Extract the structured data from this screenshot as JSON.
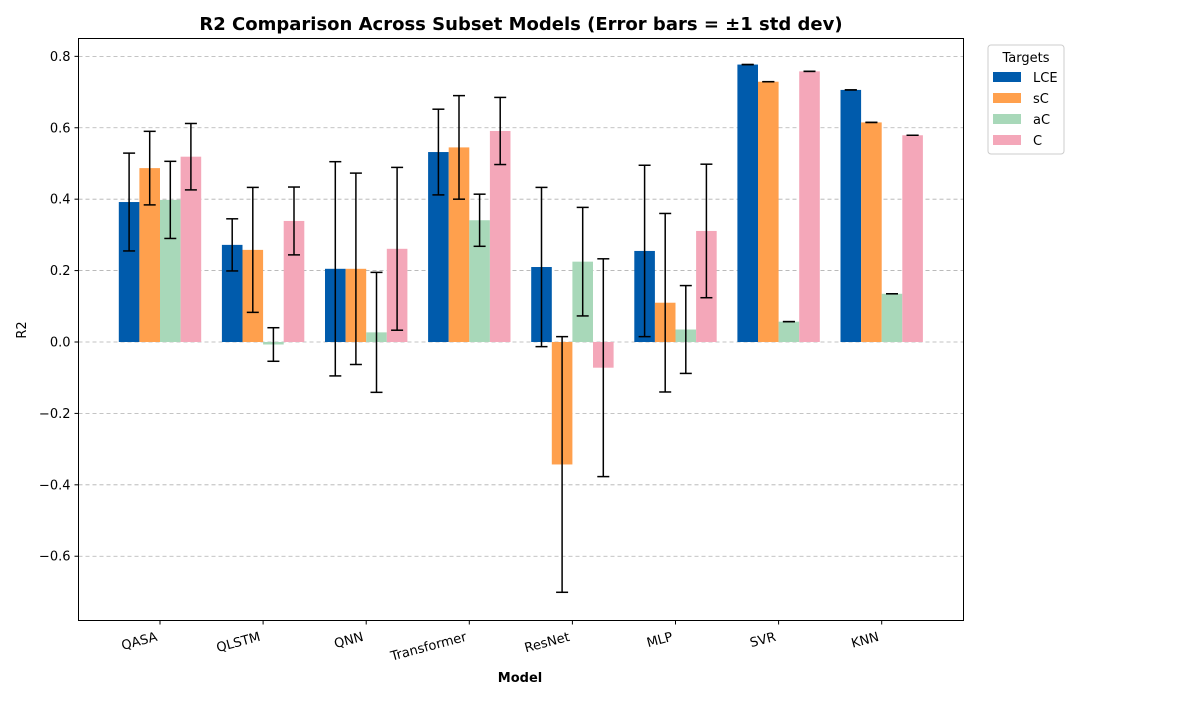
{
  "chart_data": {
    "type": "bar",
    "title": "R2 Comparison Across Subset Models (Error bars = ±1 std dev)",
    "xlabel": "Model",
    "ylabel": "R2",
    "ylim": [
      -0.78,
      0.85
    ],
    "yticks": [
      -0.6,
      -0.4,
      -0.2,
      0.0,
      0.2,
      0.4,
      0.6,
      0.8
    ],
    "ytick_labels": [
      "−0.6",
      "−0.4",
      "−0.2",
      "0.0",
      "0.2",
      "0.4",
      "0.6",
      "0.8"
    ],
    "grid": "y-dashed",
    "legend_title": "Targets",
    "legend_position": "outside-top-right",
    "categories": [
      "QASA",
      "QLSTM",
      "QNN",
      "Transformer",
      "ResNet",
      "MLP",
      "SVR",
      "KNN"
    ],
    "series": [
      {
        "name": "LCE",
        "color": "#005BAC",
        "values": [
          0.392,
          0.272,
          0.205,
          0.532,
          0.21,
          0.255,
          0.777,
          0.706
        ],
        "errors": [
          0.137,
          0.073,
          0.3,
          0.12,
          0.223,
          0.24,
          0.0,
          0.0
        ]
      },
      {
        "name": "sC",
        "color": "#FFA04D",
        "values": [
          0.487,
          0.258,
          0.205,
          0.545,
          -0.343,
          0.11,
          0.729,
          0.615
        ],
        "errors": [
          0.103,
          0.175,
          0.268,
          0.145,
          0.358,
          0.25,
          0.0,
          0.0
        ]
      },
      {
        "name": "aC",
        "color": "#A8D8B9",
        "values": [
          0.398,
          -0.007,
          0.027,
          0.341,
          0.225,
          0.035,
          0.057,
          0.135
        ],
        "errors": [
          0.108,
          0.047,
          0.168,
          0.073,
          0.152,
          0.123,
          0.0,
          0.0
        ]
      },
      {
        "name": "C",
        "color": "#F4A7B9",
        "values": [
          0.519,
          0.339,
          0.261,
          0.591,
          -0.072,
          0.311,
          0.758,
          0.579
        ],
        "errors": [
          0.093,
          0.095,
          0.228,
          0.094,
          0.305,
          0.187,
          0.0,
          0.0
        ]
      }
    ]
  }
}
